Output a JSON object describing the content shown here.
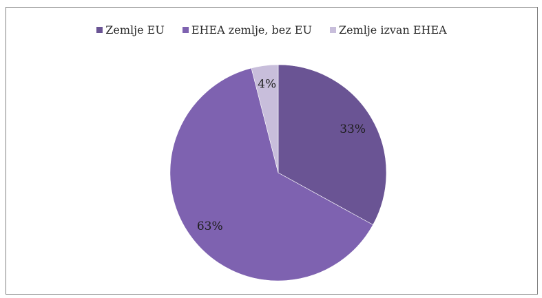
{
  "chart_data": {
    "type": "pie",
    "categories": [
      "Zemlje EU",
      "EHEA zemlje, bez EU",
      "Zemlje izvan EHEA"
    ],
    "values": [
      33,
      63,
      4
    ],
    "data_labels": [
      "33%",
      "63%",
      "4%"
    ],
    "colors": [
      "#6a5494",
      "#7e62b0",
      "#c8bedb"
    ],
    "legend_position": "top",
    "start_angle_deg": 0,
    "direction": "clockwise"
  }
}
